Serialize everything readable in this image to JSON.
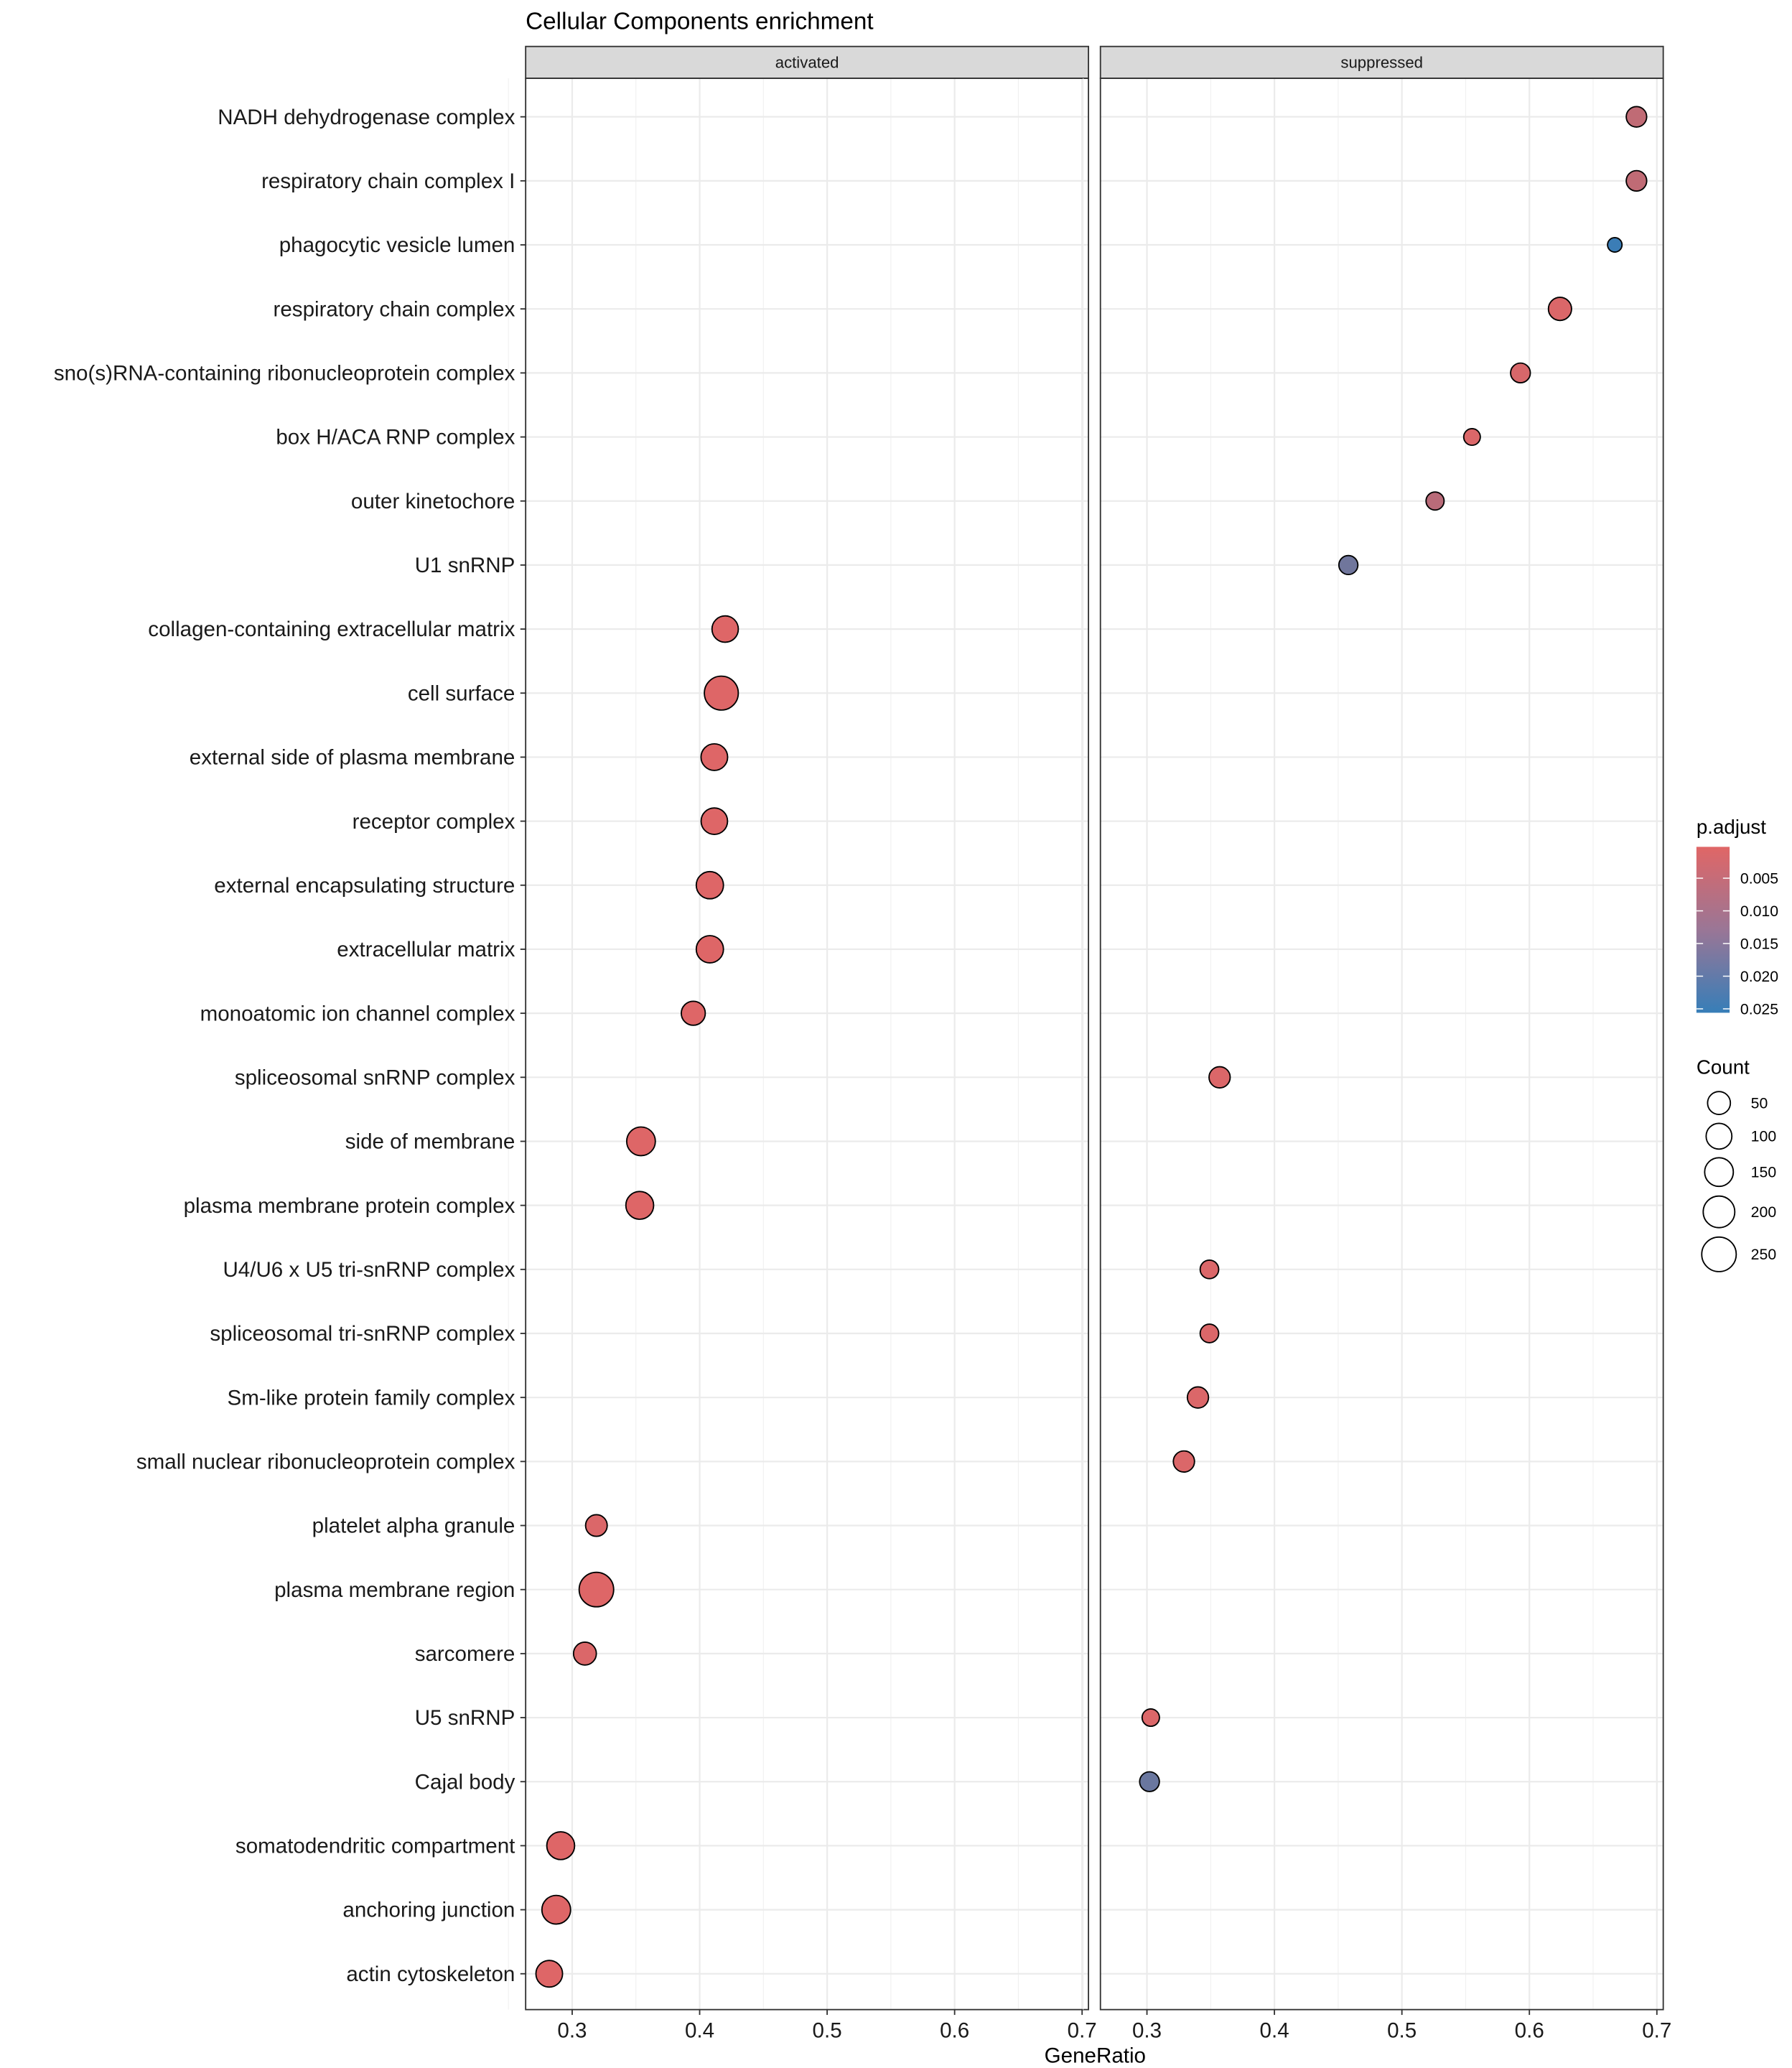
{
  "chart_data": {
    "type": "scatter",
    "title": "Cellular Components enrichment",
    "xlabel": "GeneRatio",
    "ylabel": "",
    "xlim": [
      0.2635,
      0.705
    ],
    "xticks": [
      "0.3",
      "0.4",
      "0.5",
      "0.6",
      "0.7"
    ],
    "facets": [
      "activated",
      "suppressed"
    ],
    "grid": true,
    "categories": [
      "NADH dehydrogenase complex",
      "respiratory chain complex I",
      "phagocytic vesicle lumen",
      "respiratory chain complex",
      "sno(s)RNA-containing ribonucleoprotein complex",
      "box H/ACA RNP complex",
      "outer kinetochore",
      "U1 snRNP",
      "collagen-containing extracellular matrix",
      "cell surface",
      "external side of plasma membrane",
      "receptor complex",
      "external encapsulating structure",
      "extracellular matrix",
      "monoatomic ion channel complex",
      "spliceosomal snRNP complex",
      "side of membrane",
      "plasma membrane protein complex",
      "U4/U6 x U5 tri-snRNP complex",
      "spliceosomal tri-snRNP complex",
      "Sm-like protein family complex",
      "small nuclear ribonucleoprotein complex",
      "platelet alpha granule",
      "plasma membrane region",
      "sarcomere",
      "U5 snRNP",
      "Cajal body",
      "somatodendritic compartment",
      "anchoring junction",
      "actin cytoskeleton"
    ],
    "points": [
      {
        "term": "NADH dehydrogenase complex",
        "facet": "suppressed",
        "gene_ratio": 0.684,
        "count": 40,
        "p_adjust": 0.005
      },
      {
        "term": "respiratory chain complex I",
        "facet": "suppressed",
        "gene_ratio": 0.684,
        "count": 40,
        "p_adjust": 0.005
      },
      {
        "term": "phagocytic vesicle lumen",
        "facet": "suppressed",
        "gene_ratio": 0.667,
        "count": 15,
        "p_adjust": 0.025
      },
      {
        "term": "respiratory chain complex",
        "facet": "suppressed",
        "gene_ratio": 0.624,
        "count": 55,
        "p_adjust": 0.001
      },
      {
        "term": "sno(s)RNA-containing ribonucleoprotein complex",
        "facet": "suppressed",
        "gene_ratio": 0.593,
        "count": 37,
        "p_adjust": 0.0015
      },
      {
        "term": "box H/ACA RNP complex",
        "facet": "suppressed",
        "gene_ratio": 0.555,
        "count": 24,
        "p_adjust": 0.001
      },
      {
        "term": "outer kinetochore",
        "facet": "suppressed",
        "gene_ratio": 0.526,
        "count": 30,
        "p_adjust": 0.006
      },
      {
        "term": "U1 snRNP",
        "facet": "suppressed",
        "gene_ratio": 0.458,
        "count": 34,
        "p_adjust": 0.017
      },
      {
        "term": "collagen-containing extracellular matrix",
        "facet": "activated",
        "gene_ratio": 0.42,
        "count": 110,
        "p_adjust": 0.0005
      },
      {
        "term": "cell surface",
        "facet": "activated",
        "gene_ratio": 0.417,
        "count": 240,
        "p_adjust": 0.0005
      },
      {
        "term": "external side of plasma membrane",
        "facet": "activated",
        "gene_ratio": 0.4115,
        "count": 115,
        "p_adjust": 0.0005
      },
      {
        "term": "receptor complex",
        "facet": "activated",
        "gene_ratio": 0.4115,
        "count": 112,
        "p_adjust": 0.0005
      },
      {
        "term": "external encapsulating structure",
        "facet": "activated",
        "gene_ratio": 0.408,
        "count": 125,
        "p_adjust": 0.0005
      },
      {
        "term": "extracellular matrix",
        "facet": "activated",
        "gene_ratio": 0.408,
        "count": 125,
        "p_adjust": 0.0005
      },
      {
        "term": "monoatomic ion channel complex",
        "facet": "activated",
        "gene_ratio": 0.395,
        "count": 70,
        "p_adjust": 0.0005
      },
      {
        "term": "spliceosomal snRNP complex",
        "facet": "suppressed",
        "gene_ratio": 0.357,
        "count": 43,
        "p_adjust": 0.001
      },
      {
        "term": "side of membrane",
        "facet": "activated",
        "gene_ratio": 0.354,
        "count": 150,
        "p_adjust": 0.0005
      },
      {
        "term": "plasma membrane protein complex",
        "facet": "activated",
        "gene_ratio": 0.353,
        "count": 135,
        "p_adjust": 0.0005
      },
      {
        "term": "U4/U6 x U5 tri-snRNP complex",
        "facet": "suppressed",
        "gene_ratio": 0.349,
        "count": 32,
        "p_adjust": 0.001
      },
      {
        "term": "spliceosomal tri-snRNP complex",
        "facet": "suppressed",
        "gene_ratio": 0.349,
        "count": 32,
        "p_adjust": 0.001
      },
      {
        "term": "Sm-like protein family complex",
        "facet": "suppressed",
        "gene_ratio": 0.34,
        "count": 43,
        "p_adjust": 0.001
      },
      {
        "term": "small nuclear ribonucleoprotein complex",
        "facet": "suppressed",
        "gene_ratio": 0.329,
        "count": 43,
        "p_adjust": 0.001
      },
      {
        "term": "platelet alpha granule",
        "facet": "activated",
        "gene_ratio": 0.319,
        "count": 45,
        "p_adjust": 0.001
      },
      {
        "term": "plasma membrane region",
        "facet": "activated",
        "gene_ratio": 0.319,
        "count": 250,
        "p_adjust": 0.0005
      },
      {
        "term": "sarcomere",
        "facet": "activated",
        "gene_ratio": 0.31,
        "count": 50,
        "p_adjust": 0.001
      },
      {
        "term": "U5 snRNP",
        "facet": "suppressed",
        "gene_ratio": 0.303,
        "count": 27,
        "p_adjust": 0.001
      },
      {
        "term": "Cajal body",
        "facet": "suppressed",
        "gene_ratio": 0.302,
        "count": 37,
        "p_adjust": 0.018
      },
      {
        "term": "somatodendritic compartment",
        "facet": "activated",
        "gene_ratio": 0.291,
        "count": 135,
        "p_adjust": 0.0005
      },
      {
        "term": "anchoring junction",
        "facet": "activated",
        "gene_ratio": 0.2875,
        "count": 150,
        "p_adjust": 0.0005
      },
      {
        "term": "actin cytoskeleton",
        "facet": "activated",
        "gene_ratio": 0.282,
        "count": 115,
        "p_adjust": 0.0005
      }
    ],
    "color_legend": {
      "title": "p.adjust",
      "range": [
        0.0002,
        0.0256
      ],
      "ticks": [
        "0.005",
        "0.010",
        "0.015",
        "0.020",
        "0.025"
      ],
      "low_color": "#E06666",
      "high_color": "#377EB8"
    },
    "size_legend": {
      "title": "Count",
      "values": [
        "50",
        "100",
        "150",
        "200",
        "250"
      ]
    }
  }
}
